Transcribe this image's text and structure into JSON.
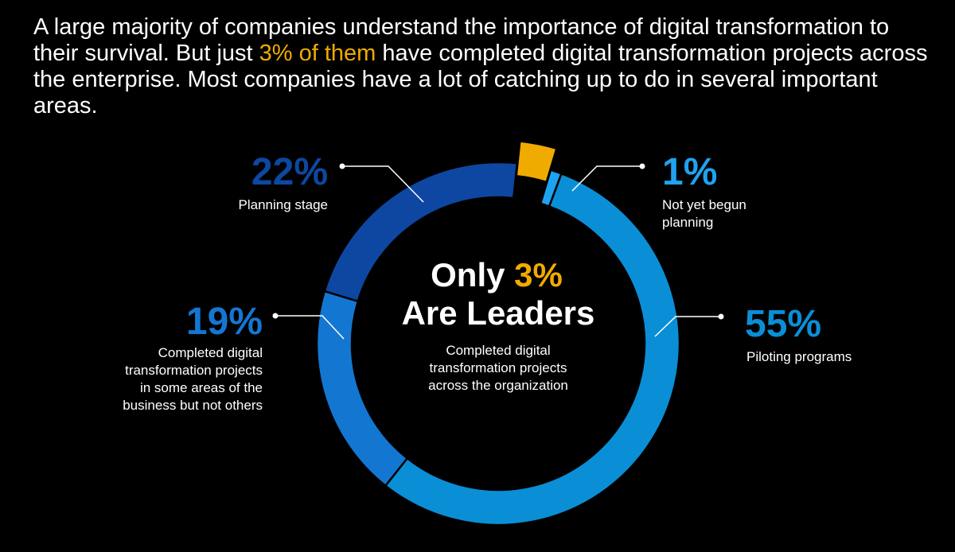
{
  "headline": {
    "part1": "A large majority of companies understand the importance of digital transformation to their survival. But just ",
    "highlight": "3% of them",
    "part2": " have completed digital transformation projects across the enterprise. Most companies have a lot of catching up to do in several important areas."
  },
  "colors": {
    "background": "#000000",
    "text": "#ffffff",
    "highlight": "#f0ab00",
    "piloting": "#0a8fd6",
    "planning": "#0d47a1",
    "completed_some": "#1377d2",
    "not_begun": "#1fa3f0",
    "leaders": "#f0ab00"
  },
  "center": {
    "line1_prefix": "Only ",
    "line1_highlight": "3%",
    "line2": "Are Leaders",
    "sub": [
      "Completed digital",
      "transformation projects",
      "across the organization"
    ]
  },
  "chart_data": {
    "type": "pie",
    "title": "",
    "segments": [
      {
        "key": "leaders",
        "label": "Completed digital transformation projects across the organization",
        "value": 3,
        "exploded": true
      },
      {
        "key": "not_begun",
        "label": "Not yet begun planning",
        "value": 1
      },
      {
        "key": "piloting",
        "label": "Piloting programs",
        "value": 55
      },
      {
        "key": "completed_some",
        "label": "Completed digital transformation projects in some areas of the business but not others",
        "value": 19
      },
      {
        "key": "planning",
        "label": "Planning stage",
        "value": 22
      }
    ]
  },
  "callouts": {
    "planning": {
      "pct": "22%",
      "lines": [
        "Planning stage"
      ]
    },
    "not_begun": {
      "pct": "1%",
      "lines": [
        "Not yet begun",
        "planning"
      ]
    },
    "completed_some": {
      "pct": "19%",
      "lines": [
        "Completed digital",
        "transformation projects",
        "in some areas of the",
        "business but not others"
      ]
    },
    "piloting": {
      "pct": "55%",
      "lines": [
        "Piloting programs"
      ]
    }
  }
}
